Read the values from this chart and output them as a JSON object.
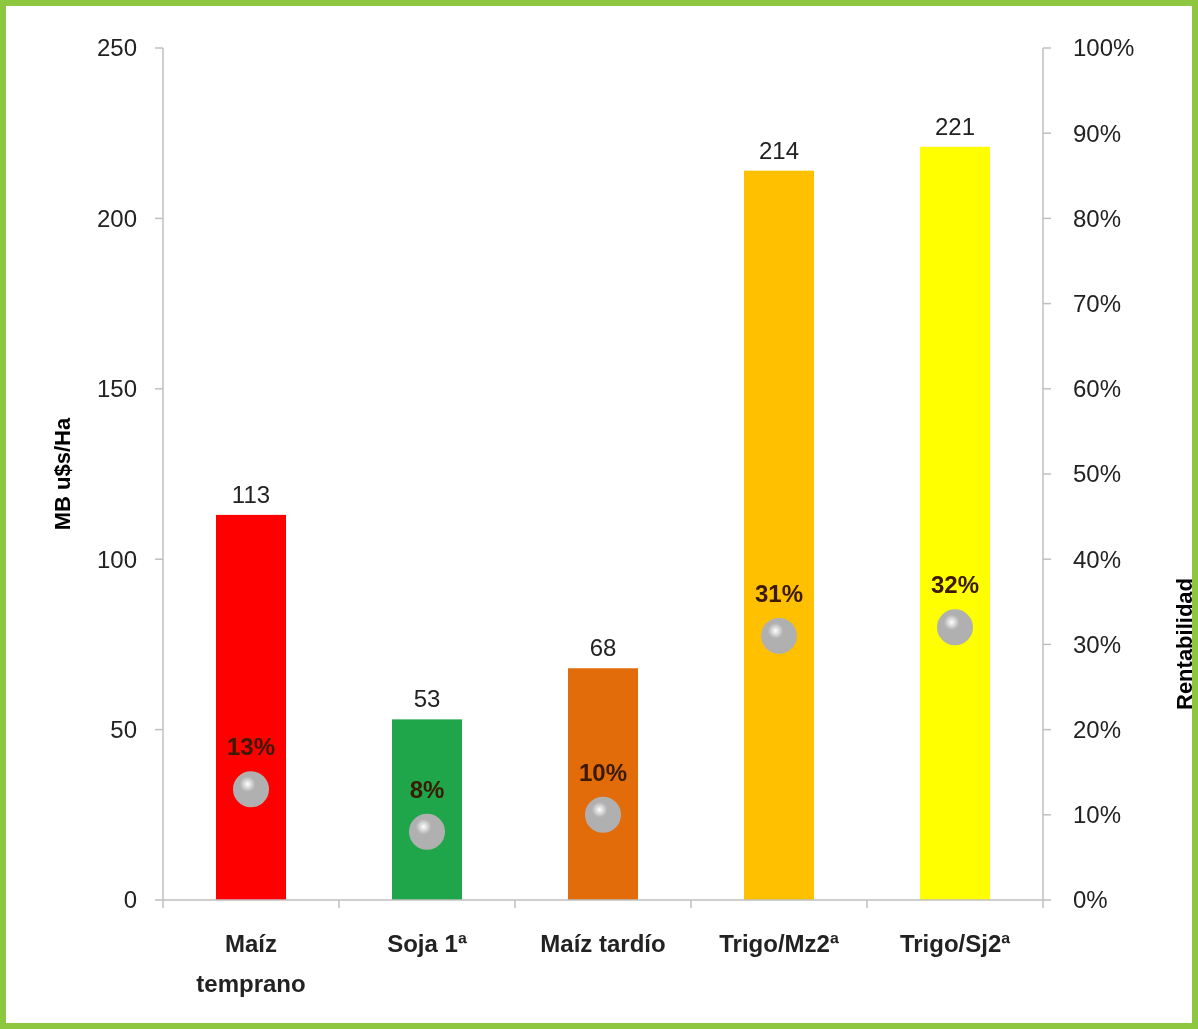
{
  "chart_data": {
    "type": "bar",
    "ylabel": "MB u$s/Ha",
    "y2label": "Rentabilidad",
    "categories": [
      "Maíz temprano",
      "Soja 1ª",
      "Maíz tardío",
      "Trigo/Mz2ª",
      "Trigo/Sj2ª"
    ],
    "series": [
      {
        "values": [
          113,
          53,
          68,
          214,
          221
        ],
        "colors": [
          "#ff0000",
          "#1fa64a",
          "#e36c0a",
          "#ffc000",
          "#ffff00"
        ],
        "data_labels": true
      },
      {
        "type": "scatter",
        "axis": "y2",
        "color": "#b0b0b0",
        "marker": "circle",
        "values": [
          13,
          8,
          10,
          31,
          32
        ],
        "value_labels": [
          "13%",
          "8%",
          "10%",
          "31%",
          "32%"
        ]
      }
    ],
    "ylim": [
      0,
      250
    ],
    "yticks": [
      0,
      50,
      100,
      150,
      200,
      250
    ],
    "y2lim": [
      0,
      100
    ],
    "y2ticks": [
      {
        "value": 0,
        "label": "0%"
      },
      {
        "value": 10,
        "label": "10%"
      },
      {
        "value": 20,
        "label": "20%"
      },
      {
        "value": 30,
        "label": "30%"
      },
      {
        "value": 40,
        "label": "40%"
      },
      {
        "value": 50,
        "label": "50%"
      },
      {
        "value": 60,
        "label": "60%"
      },
      {
        "value": 70,
        "label": "70%"
      },
      {
        "value": 80,
        "label": "80%"
      },
      {
        "value": 90,
        "label": "90%"
      },
      {
        "value": 100,
        "label": "100%"
      }
    ],
    "grid": false
  }
}
